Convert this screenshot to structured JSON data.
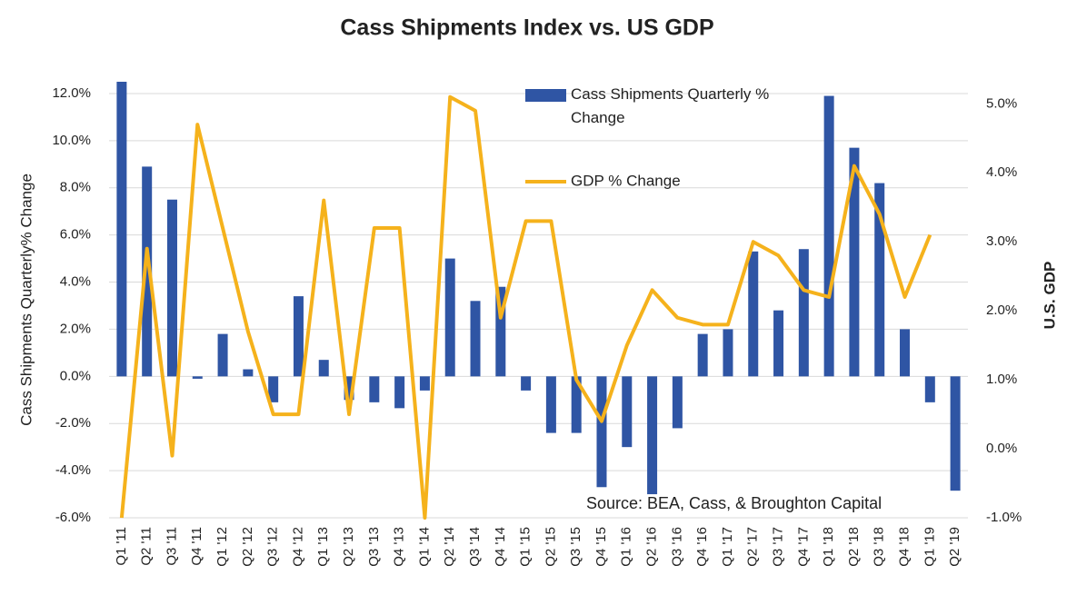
{
  "chart_data": {
    "type": "bar-line",
    "title": "Cass Shipments Index vs. US GDP",
    "y_label": "Cass Shipments Quarterly% Change",
    "y2_label": "U.S. GDP",
    "annotation": "Source: BEA, Cass, & Broughton Capital",
    "categories": [
      "Q1 '11",
      "Q2 '11",
      "Q3 '11",
      "Q4 '11",
      "Q1 '12",
      "Q2 '12",
      "Q3 '12",
      "Q4 '12",
      "Q1 '13",
      "Q2 '13",
      "Q3 '13",
      "Q4 '13",
      "Q1 '14",
      "Q2 '14",
      "Q3 '14",
      "Q4 '14",
      "Q1 '15",
      "Q2 '15",
      "Q3 '15",
      "Q4 '15",
      "Q1 '16",
      "Q2 '16",
      "Q3 '16",
      "Q4 '16",
      "Q1 '17",
      "Q2 '17",
      "Q3 '17",
      "Q4 '17",
      "Q1 '18",
      "Q2 '18",
      "Q3 '18",
      "Q4 '18",
      "Q1 '19",
      "Q2 '19"
    ],
    "series": [
      {
        "name": "Cass Shipments Quarterly % Change",
        "type": "bar",
        "color": "#2f55a4",
        "values": [
          12.5,
          8.9,
          7.5,
          -0.1,
          1.8,
          0.3,
          -1.1,
          3.4,
          0.7,
          -1.0,
          -1.1,
          -1.35,
          -0.6,
          5.0,
          3.2,
          3.8,
          -0.6,
          -2.4,
          -2.4,
          -4.7,
          -3.0,
          -5.0,
          -2.2,
          1.8,
          2.0,
          5.3,
          2.8,
          5.4,
          11.9,
          9.7,
          8.2,
          2.0,
          -1.1,
          -4.85
        ]
      },
      {
        "name": "GDP % Change",
        "type": "line",
        "axis": "y2",
        "color": "#f5b21c",
        "values": [
          -1.0,
          2.9,
          -0.1,
          4.7,
          3.2,
          1.7,
          0.5,
          0.5,
          3.6,
          0.5,
          3.2,
          3.2,
          -1.0,
          5.1,
          4.9,
          1.9,
          3.3,
          3.3,
          1.0,
          0.4,
          1.5,
          2.3,
          1.9,
          1.8,
          1.8,
          3.0,
          2.8,
          2.3,
          2.2,
          4.1,
          3.4,
          2.2,
          3.1,
          null
        ]
      }
    ],
    "ylim": [
      -6,
      12.5
    ],
    "yticks": [
      {
        "value": -6,
        "label": "-6.0%"
      },
      {
        "value": -4,
        "label": "-4.0%"
      },
      {
        "value": -2,
        "label": "-2.0%"
      },
      {
        "value": 0,
        "label": "0.0%"
      },
      {
        "value": 2,
        "label": "2.0%"
      },
      {
        "value": 4,
        "label": "4.0%"
      },
      {
        "value": 6,
        "label": "6.0%"
      },
      {
        "value": 8,
        "label": "8.0%"
      },
      {
        "value": 10,
        "label": "10.0%"
      },
      {
        "value": 12,
        "label": "12.0%"
      }
    ],
    "y2lim": [
      -1,
      5.32
    ],
    "y2ticks": [
      {
        "value": -1,
        "label": "-1.0%"
      },
      {
        "value": 0,
        "label": "0.0%"
      },
      {
        "value": 1,
        "label": "1.0%"
      },
      {
        "value": 2,
        "label": "2.0%"
      },
      {
        "value": 3,
        "label": "3.0%"
      },
      {
        "value": 4,
        "label": "4.0%"
      },
      {
        "value": 5,
        "label": "5.0%"
      }
    ],
    "grid": true
  }
}
